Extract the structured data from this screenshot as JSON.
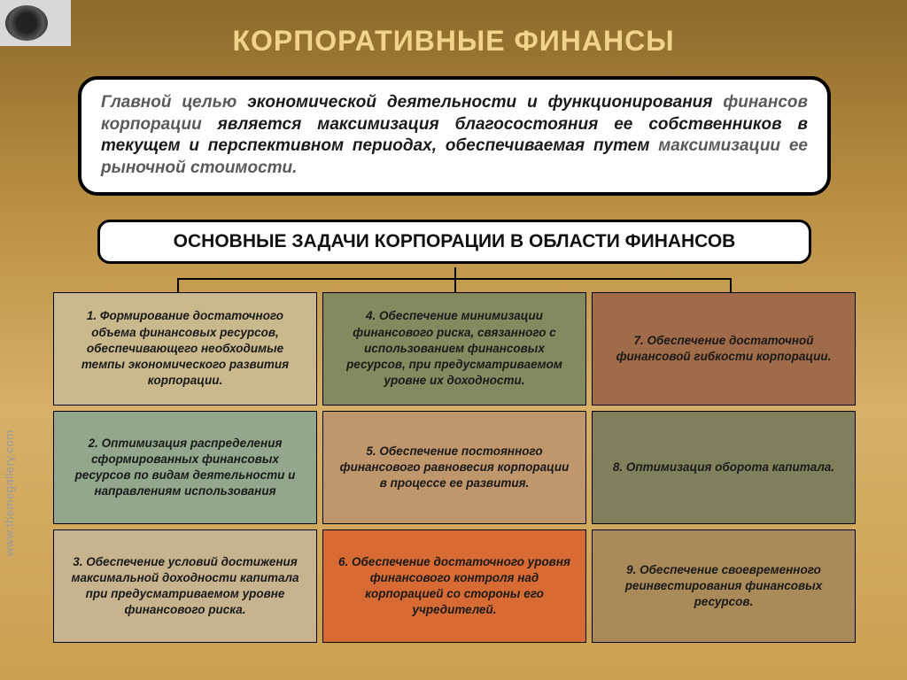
{
  "title": "КОРПОРАТИВНЫЕ ФИНАНСЫ",
  "intro": {
    "seg1": "Главной целью",
    "seg2": " экономической деятельности и функционирования ",
    "seg3": "финансов корпорации",
    "seg4": " является максимизация благосостояния ее собственников в текущем и перспективном периодах, обеспечиваемая путем ",
    "seg5": "максимизации ее рыночной стоимости.",
    "fontsize": 19
  },
  "subheading": "ОСНОВНЫЕ ЗАДАЧИ КОРПОРАЦИИ В ОБЛАСТИ ФИНАНСОВ",
  "grid": {
    "type": "infographic",
    "rows": 3,
    "cols": 3,
    "cell_fontsize": 13.5,
    "cell_font_style": "bold italic",
    "border_color": "#000000",
    "cells": [
      {
        "text": "1. Формирование достаточного объема финансовых ресурсов, обеспечивающего необходимые темпы экономического развития корпорации.",
        "bg": "#cbb98e"
      },
      {
        "text": "4. Обеспечение минимизации финансового риска, связанного с использованием финансовых ресурсов, при предусматриваемом уровне их доходности.",
        "bg": "#85895f"
      },
      {
        "text": "7. Обеспечение достаточной финансовой гибкости корпорации.",
        "bg": "#9f6b48"
      },
      {
        "text": "2. Оптимизация распределения сформированных финансовых ресурсов по видам деятельности и направлениям использования",
        "bg": "#92a78b"
      },
      {
        "text": "5. Обеспечение постоянного финансового равновесия корпорации в процессе ее развития.",
        "bg": "#c0966c"
      },
      {
        "text": "8. Оптимизация оборота капитала.",
        "bg": "#82805c"
      },
      {
        "text": "3. Обеспечение условий достижения максимальной доходности капитала при предусматриваемом уровне финансового риска.",
        "bg": "#c7b48f"
      },
      {
        "text": "6. Обеспечение достаточного уровня финансового контроля над корпорацией со стороны его учредителей.",
        "bg": "#d86b33"
      },
      {
        "text": "9. Обеспечение своевременного реинвестирования финансовых ресурсов.",
        "bg": "#aa8a58"
      }
    ]
  },
  "watermark": "www.themegallery.com",
  "colors": {
    "title": "#f2d38a",
    "bg_top": "#8d6a2a",
    "bg_bottom": "#caa052",
    "box_bg": "#ffffff",
    "box_border": "#000000"
  }
}
